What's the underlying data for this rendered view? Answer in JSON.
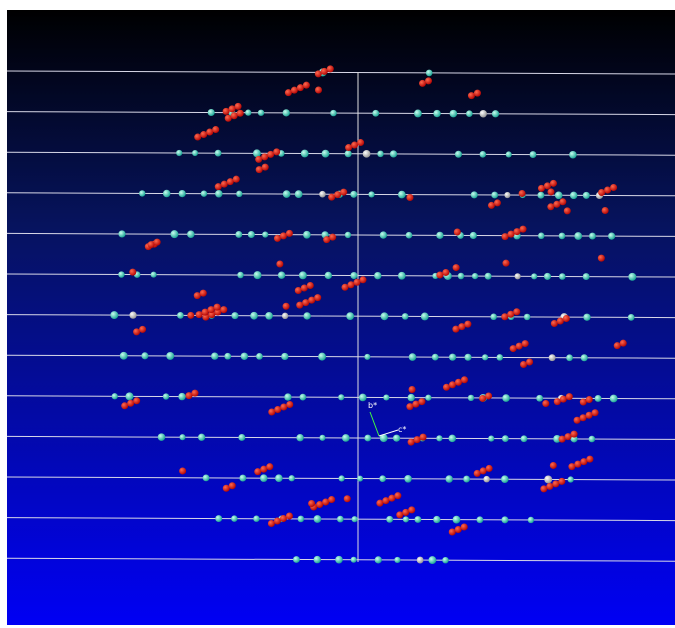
{
  "axis_labels": {
    "b_star": "b*",
    "c_star": "c*"
  }
}
